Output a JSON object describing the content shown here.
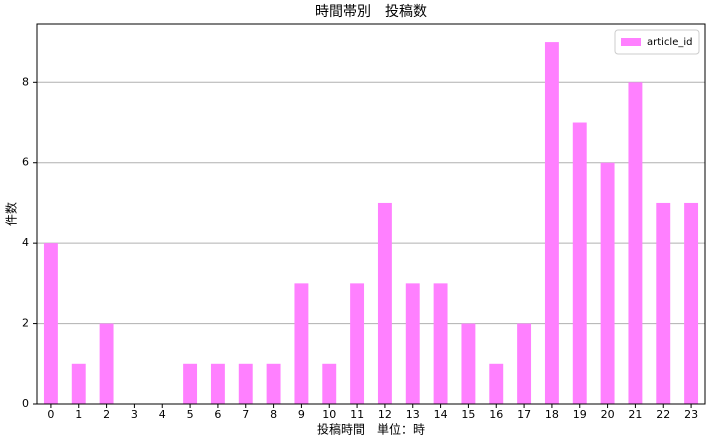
{
  "chart_data": {
    "type": "bar",
    "title": "時間帯別　投稿数",
    "x_label": "投稿時間　単位：時",
    "y_label": "件数",
    "categories": [
      "0",
      "1",
      "2",
      "3",
      "4",
      "5",
      "6",
      "7",
      "8",
      "9",
      "10",
      "11",
      "12",
      "13",
      "14",
      "15",
      "16",
      "17",
      "18",
      "19",
      "20",
      "21",
      "22",
      "23"
    ],
    "series": [
      {
        "name": "article_id",
        "color": "#ff80ff",
        "values": [
          4,
          1,
          2,
          0,
          0,
          1,
          1,
          1,
          1,
          3,
          1,
          3,
          5,
          3,
          3,
          2,
          1,
          2,
          9,
          7,
          6,
          8,
          5,
          5
        ]
      }
    ],
    "ylim": [
      0,
      9.45
    ],
    "yticks": [
      0,
      2,
      4,
      6,
      8
    ],
    "grid": true,
    "legend": "upper right"
  }
}
